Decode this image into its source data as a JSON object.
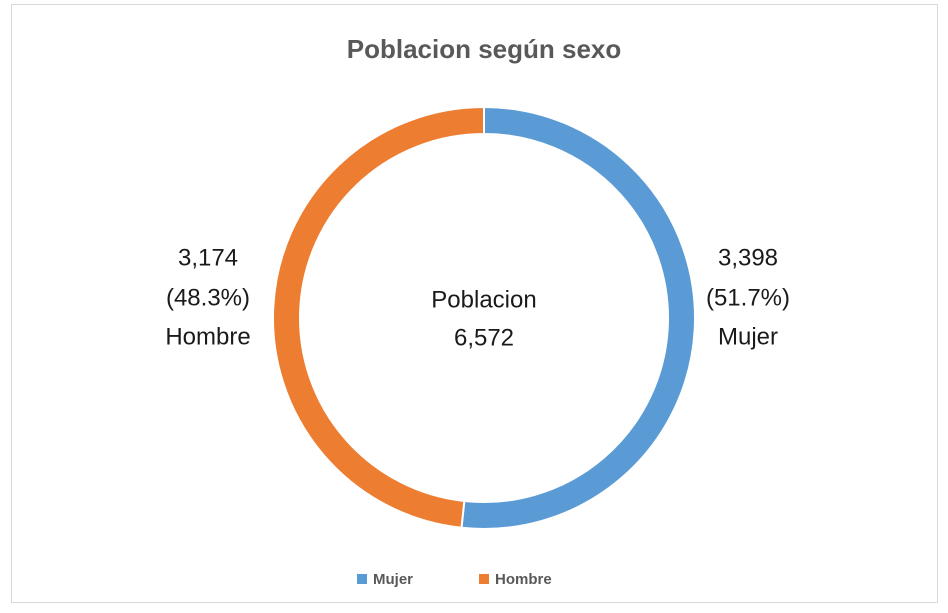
{
  "chart_data": {
    "type": "pie",
    "donut": true,
    "title": "Poblacion según sexo",
    "categories": [
      "Mujer",
      "Hombre"
    ],
    "values": [
      3398,
      3174
    ],
    "value_labels": [
      "3,398",
      "3,174"
    ],
    "percentages": [
      51.7,
      48.3
    ],
    "percentage_labels": [
      "(51.7%)",
      "(48.3%)"
    ],
    "colors": [
      "#5b9bd5",
      "#ed7d31"
    ],
    "center_label": "Poblacion",
    "center_value": "6,572",
    "legend": "bottom"
  }
}
